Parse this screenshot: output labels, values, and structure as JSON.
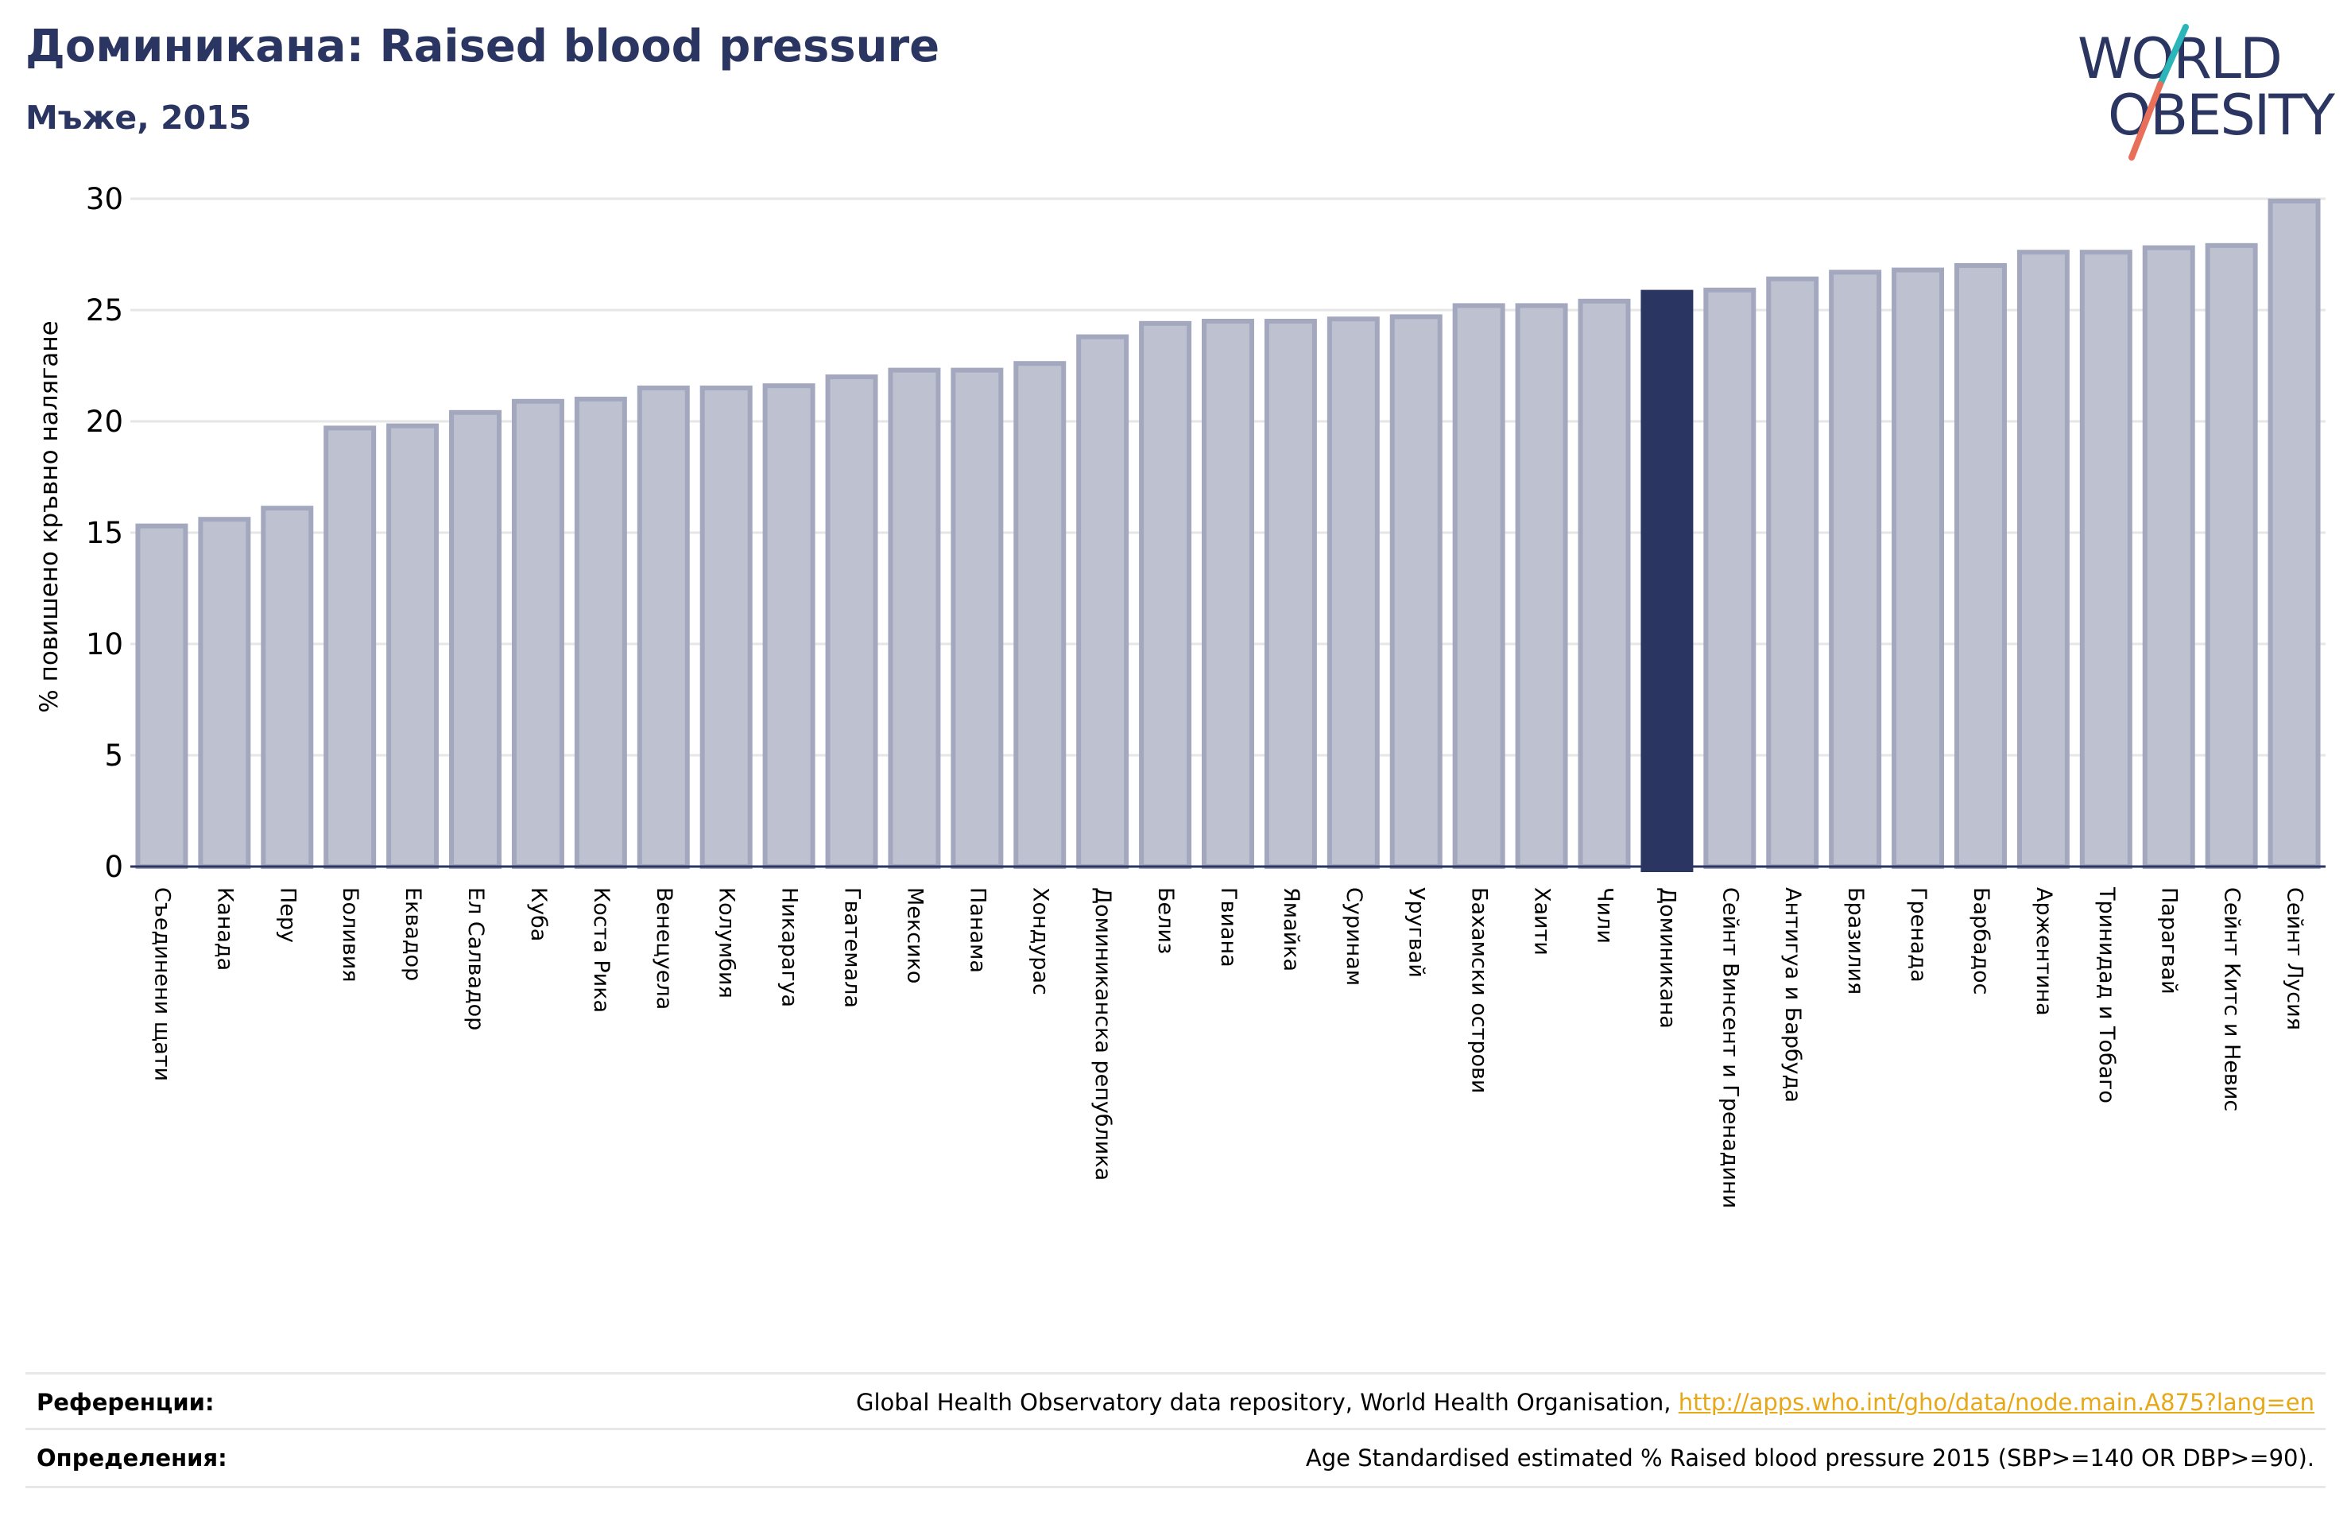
{
  "header": {
    "title": "Доминикана: Raised blood pressure",
    "subtitle": "Мъже, 2015"
  },
  "logo": {
    "line1": "WORLD",
    "line2": "OBESITY",
    "colors": {
      "text": "#2b3561",
      "slash_top": "#2bb5b8",
      "slash_bottom": "#e8705a"
    }
  },
  "colors": {
    "bar_fill": "#bec1cf",
    "bar_stroke": "#a3a8be",
    "highlight": "#2b3561",
    "grid": "#e6e6e6",
    "axis": "#2b3561"
  },
  "chart_data": {
    "type": "bar",
    "title": "Доминикана: Raised blood pressure",
    "subtitle": "Мъже, 2015",
    "xlabel": "",
    "ylabel": "% повишено кръвно налягане",
    "ylim": [
      0,
      30
    ],
    "yticks": [
      0,
      5,
      10,
      15,
      20,
      25,
      30
    ],
    "grid": true,
    "highlight": "Доминикана",
    "categories": [
      "Съединени щати",
      "Канада",
      "Перу",
      "Боливия",
      "Еквадор",
      "Ел Салвадор",
      "Куба",
      "Коста Рика",
      "Венецуела",
      "Колумбия",
      "Никарагуа",
      "Гватемала",
      "Мексико",
      "Панама",
      "Хондурас",
      "Доминиканска република",
      "Белиз",
      "Гвиана",
      "Ямайка",
      "Суринам",
      "Уругвай",
      "Бахамски острови",
      "Хаити",
      "Чили",
      "Доминикана",
      "Сейнт Винсент и Гренадини",
      "Антигуа и Барбуда",
      "Бразилия",
      "Гренада",
      "Барбадос",
      "Аржентина",
      "Тринидад и Тобаго",
      "Парагвай",
      "Сейнт Китс и Невис",
      "Сейнт Лусия"
    ],
    "values": [
      15.3,
      15.6,
      16.1,
      19.7,
      19.8,
      20.4,
      20.9,
      21.0,
      21.5,
      21.5,
      21.6,
      22.0,
      22.3,
      22.3,
      22.6,
      23.8,
      24.4,
      24.5,
      24.5,
      24.6,
      24.7,
      25.2,
      25.2,
      25.4,
      25.8,
      25.9,
      26.4,
      26.7,
      26.8,
      27.0,
      27.6,
      27.6,
      27.8,
      27.9,
      29.9
    ]
  },
  "footer": {
    "references_label": "Референции:",
    "references_text": "Global Health Observatory data repository, World Health Organisation,",
    "references_link": "http://apps.who.int/gho/data/node.main.A875?lang=en",
    "definitions_label": "Определения:",
    "definitions_text": "Age Standardised estimated % Raised blood pressure 2015 (SBP>=140 OR DBP>=90)."
  }
}
